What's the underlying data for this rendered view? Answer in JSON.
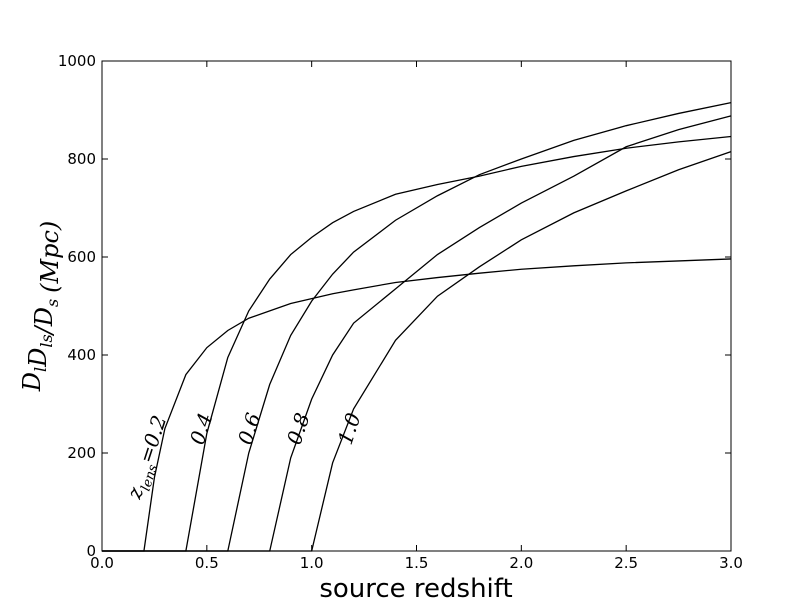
{
  "chart_data": {
    "type": "line",
    "xlabel": "source redshift",
    "ylabel": [
      [
        "D",
        "l"
      ],
      [
        "D",
        "ls"
      ],
      [
        "/D",
        "s"
      ],
      [
        "(Mpc)",
        ""
      ]
    ],
    "x": [
      0,
      0.2,
      0.25,
      0.3,
      0.4,
      0.5,
      0.6,
      0.7,
      0.8,
      0.9,
      1.0,
      1.1,
      1.2,
      1.4,
      1.6,
      1.8,
      2.0,
      2.25,
      2.5,
      2.75,
      3.0
    ],
    "series": [
      {
        "name": "0.2",
        "color": "#000000",
        "values": [
          0,
          0,
          150,
          250,
          360,
          415,
          450,
          475,
          490,
          505,
          515,
          525,
          533,
          548,
          558,
          567,
          575,
          582,
          588,
          592,
          596
        ]
      },
      {
        "name": "0.4",
        "color": "#000000",
        "values": [
          0,
          0,
          0,
          0,
          0,
          240,
          395,
          490,
          555,
          605,
          640,
          670,
          693,
          728,
          748,
          765,
          785,
          805,
          822,
          835,
          846
        ]
      },
      {
        "name": "0.6",
        "color": "#000000",
        "values": [
          0,
          0,
          0,
          0,
          0,
          0,
          0,
          200,
          340,
          440,
          510,
          565,
          610,
          675,
          725,
          768,
          800,
          838,
          868,
          893,
          915
        ]
      },
      {
        "name": "0.8",
        "color": "#000000",
        "values": [
          0,
          0,
          0,
          0,
          0,
          0,
          0,
          0,
          0,
          190,
          310,
          400,
          465,
          535,
          605,
          660,
          710,
          765,
          825,
          860,
          888
        ]
      },
      {
        "name": "1.0",
        "color": "#000000",
        "values": [
          0,
          0,
          0,
          0,
          0,
          0,
          0,
          0,
          0,
          0,
          0,
          180,
          290,
          430,
          520,
          580,
          635,
          690,
          735,
          778,
          815
        ]
      }
    ],
    "annotations": [
      [
        "z",
        "lens",
        "=0.2"
      ],
      [
        "0.4",
        "",
        ""
      ],
      [
        "0.6",
        "",
        ""
      ],
      [
        "0.8",
        "",
        ""
      ],
      [
        "1.0",
        "",
        ""
      ]
    ],
    "xlim": [
      0,
      3
    ],
    "ylim": [
      0,
      1000
    ],
    "xticks": [
      {
        "value": 0,
        "label": "0.0"
      },
      0.5,
      {
        "value": 1,
        "label": "1.0"
      },
      1.5,
      {
        "value": 2,
        "label": "2.0"
      },
      2.5,
      {
        "value": 3,
        "label": "3.0"
      }
    ],
    "yticks": [
      0,
      200,
      400,
      600,
      800,
      1000
    ]
  }
}
